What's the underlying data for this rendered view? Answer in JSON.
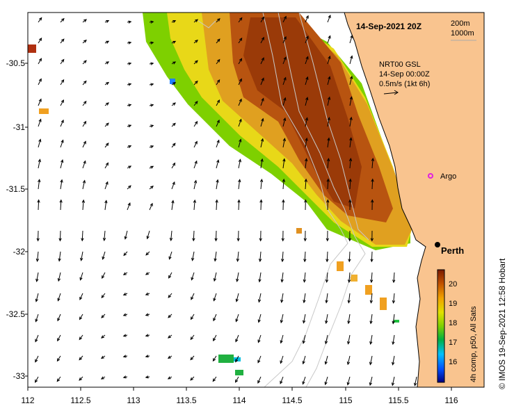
{
  "map": {
    "x_ticks": [
      "112",
      "112.5",
      "113",
      "113.5",
      "114",
      "114.5",
      "115",
      "115.5",
      "116"
    ],
    "y_ticks": [
      "-30.5",
      "-31",
      "-31.5",
      "-32",
      "-32.5",
      "-33"
    ],
    "lon_range": [
      112,
      116.3
    ],
    "lat_range": [
      -33.1,
      -30.1
    ]
  },
  "title": "14-Sep-2021 20Z",
  "depth_legend": {
    "line1": "200m",
    "line2": "1000m"
  },
  "current_legend": {
    "line1": "NRT00 GSL",
    "line2": "14-Sep 00:00Z",
    "line3": "0.5m/s (1kt 6h)"
  },
  "places": {
    "argo": "Argo",
    "city": "Perth"
  },
  "colorbar": {
    "label": "4h comp, p50, All Sats",
    "ticks": [
      "20",
      "19",
      "18",
      "17",
      "16"
    ],
    "range": [
      15.5,
      20.6
    ]
  },
  "credit": "© IMOS 19-Sep-2021 12:58 Hobart",
  "colors": {
    "land": "#f9c48f",
    "sst_warm": "#a0400a",
    "sst_mid": "#e0a020",
    "sst_cool": "#20c020"
  }
}
